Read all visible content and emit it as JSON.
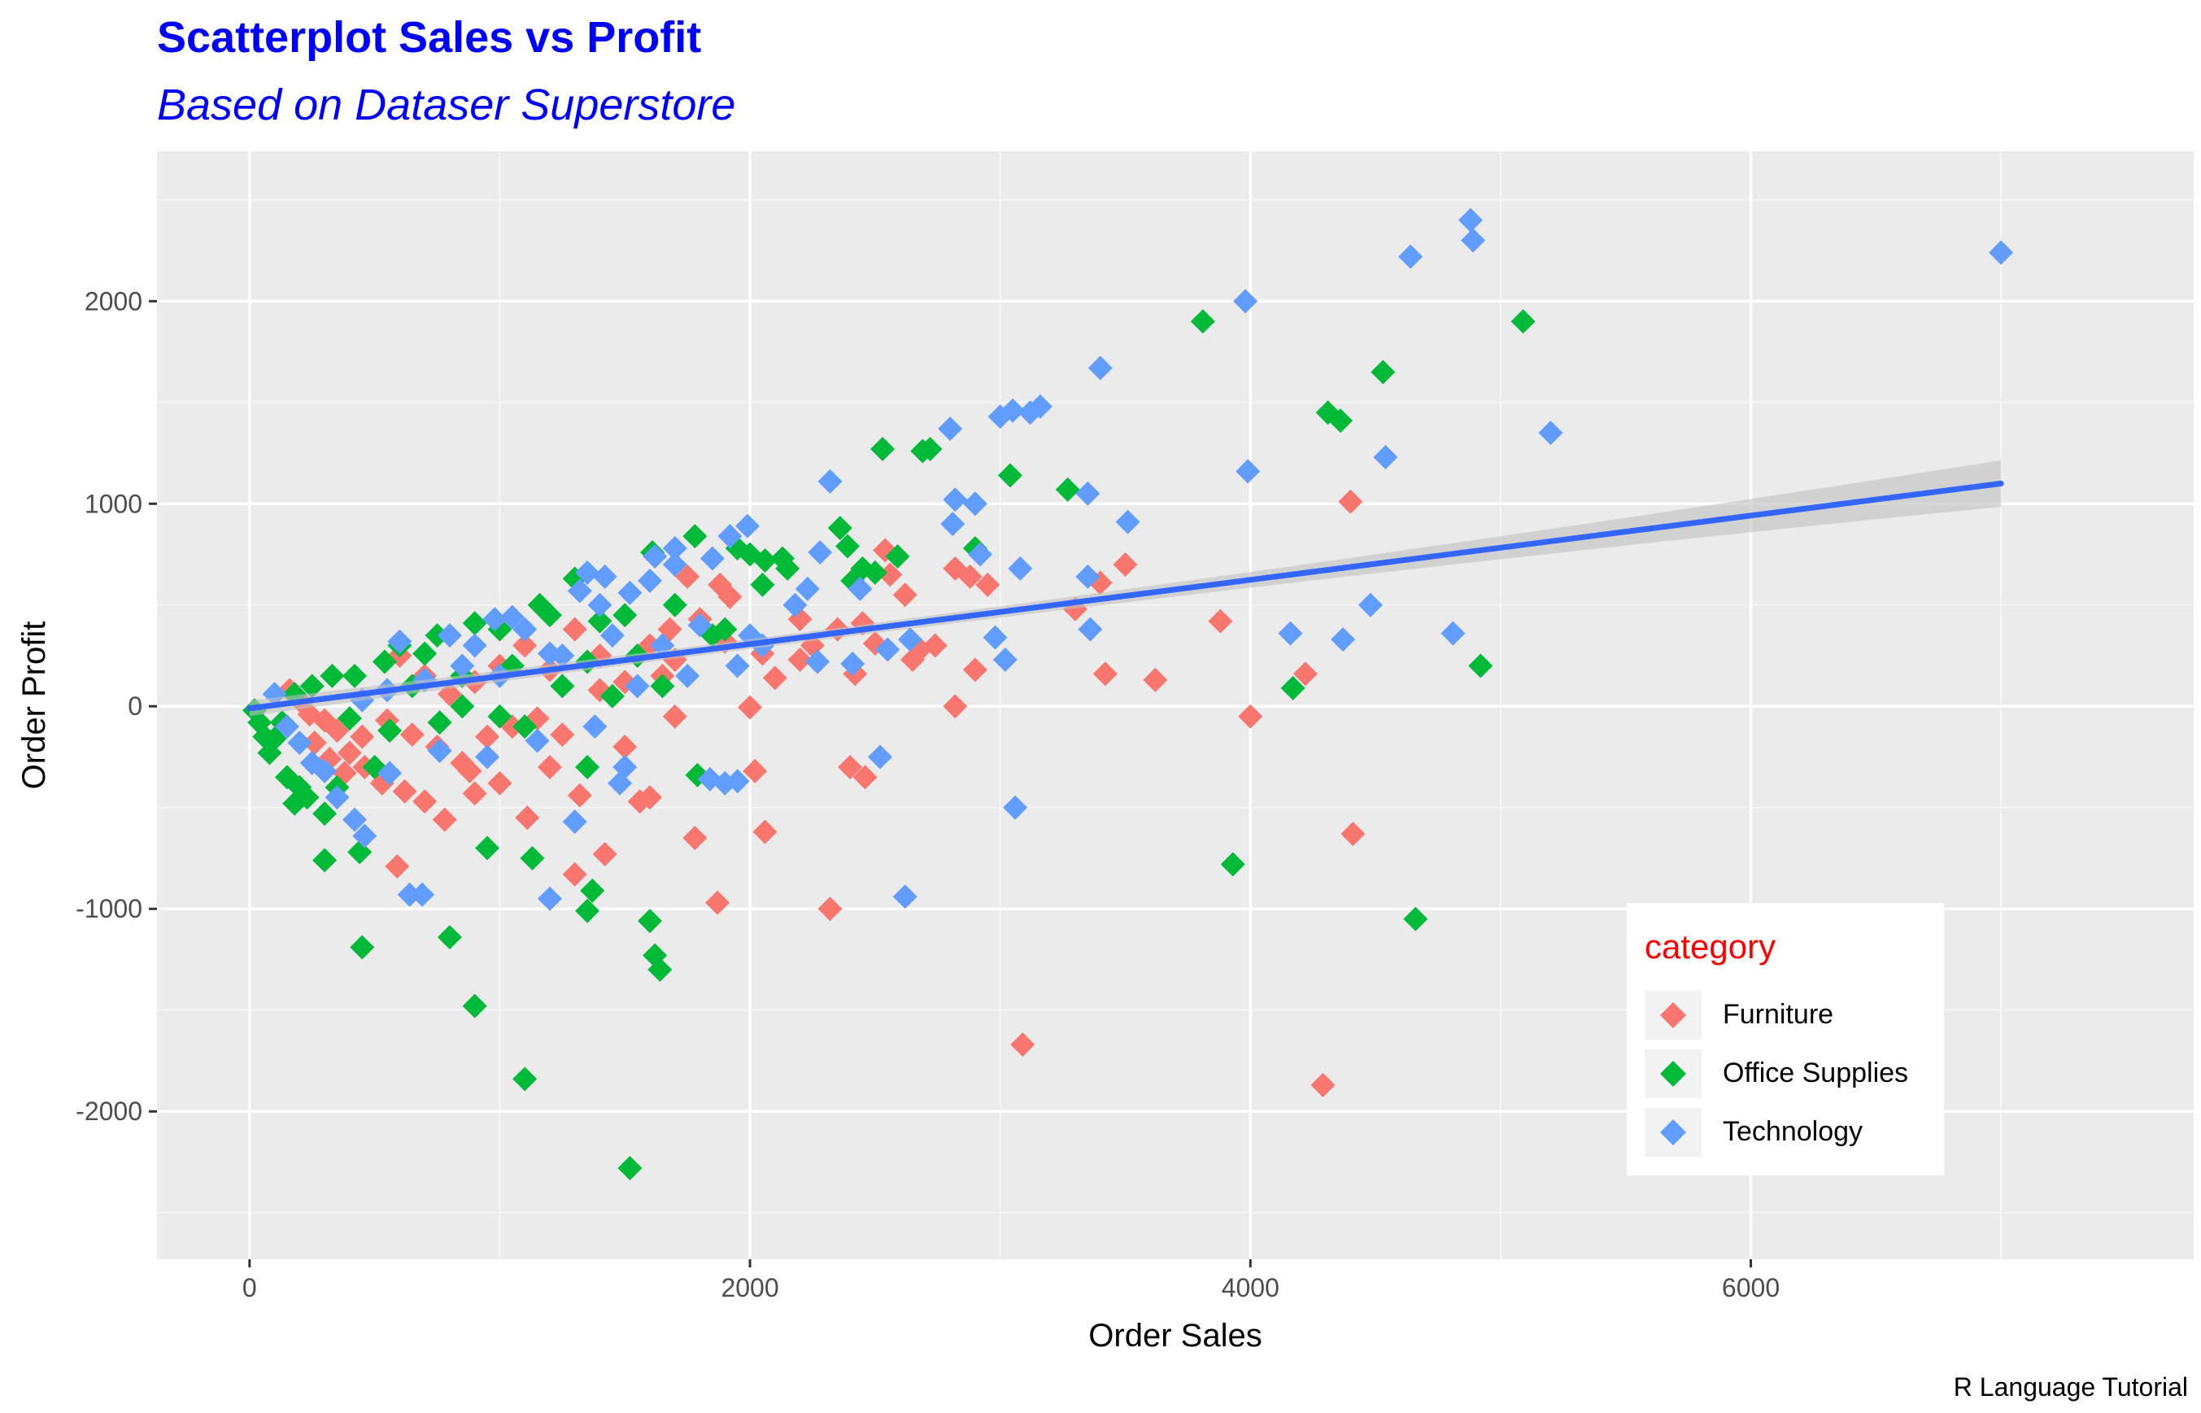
{
  "chart_data": {
    "type": "scatter",
    "title": "Scatterplot Sales vs Profit",
    "subtitle": "Based on Dataser Superstore",
    "caption": "R Language Tutorial",
    "xlabel": "Order Sales",
    "ylabel": "Order Profit",
    "xlim": [
      -370,
      7770
    ],
    "ylim": [
      -2730,
      2740
    ],
    "x_ticks": [
      0,
      2000,
      4000,
      6000
    ],
    "x_tick_labels": [
      "0",
      "2000",
      "4000",
      "6000"
    ],
    "y_ticks": [
      -2000,
      -1000,
      0,
      1000,
      2000
    ],
    "y_tick_labels": [
      "-2000",
      "-1000",
      "0",
      "1000",
      "2000"
    ],
    "grid": true,
    "legend": {
      "title": "category",
      "placement": "bottom-right inside",
      "entries": [
        "Furniture",
        "Office Supplies",
        "Technology"
      ]
    },
    "colors": {
      "title": "#0000ff",
      "legend_title": "#ff0000",
      "panel_bg": "#ebebeb",
      "grid_major": "#ffffff",
      "grid_minor": "#f5f5f5",
      "trend_line": "#3366ff",
      "ribbon": "#c0c0c0",
      "axis_text": "#4d4d4d"
    },
    "trend_line": {
      "label": "linear fit (geom_smooth, lm)",
      "x": [
        0,
        7000
      ],
      "y": [
        -10,
        1100
      ]
    },
    "series": [
      {
        "name": "Furniture",
        "color": "#f8766d",
        "points": [
          [
            4400,
            1010
          ],
          [
            3500,
            700
          ],
          [
            3400,
            610
          ],
          [
            3300,
            480
          ],
          [
            3880,
            420
          ],
          [
            3420,
            160
          ],
          [
            3620,
            130
          ],
          [
            4220,
            160
          ],
          [
            4000,
            -50
          ],
          [
            4410,
            -630
          ],
          [
            3090,
            -1670
          ],
          [
            4290,
            -1870
          ],
          [
            2820,
            680
          ],
          [
            2880,
            640
          ],
          [
            2950,
            600
          ],
          [
            2900,
            180
          ],
          [
            2820,
            0
          ],
          [
            2740,
            300
          ],
          [
            2620,
            550
          ],
          [
            2540,
            770
          ],
          [
            2500,
            310
          ],
          [
            2460,
            -350
          ],
          [
            2420,
            160
          ],
          [
            2400,
            -300
          ],
          [
            2320,
            -1000
          ],
          [
            1870,
            -970
          ],
          [
            1780,
            -650
          ],
          [
            2060,
            -620
          ],
          [
            2020,
            -320
          ],
          [
            2000,
            -5
          ],
          [
            1880,
            600
          ],
          [
            1750,
            640
          ],
          [
            1680,
            380
          ],
          [
            1600,
            -450
          ],
          [
            1560,
            -470
          ],
          [
            1420,
            -730
          ],
          [
            1300,
            -830
          ],
          [
            1320,
            -440
          ],
          [
            1200,
            -300
          ],
          [
            1110,
            -550
          ],
          [
            1000,
            -380
          ],
          [
            900,
            -430
          ],
          [
            850,
            -280
          ],
          [
            780,
            -560
          ],
          [
            700,
            -470
          ],
          [
            590,
            -790
          ],
          [
            530,
            -380
          ],
          [
            460,
            -300
          ],
          [
            400,
            -230
          ],
          [
            350,
            -120
          ],
          [
            300,
            -70
          ],
          [
            240,
            -40
          ],
          [
            200,
            30
          ],
          [
            160,
            80
          ],
          [
            600,
            250
          ],
          [
            700,
            150
          ],
          [
            800,
            60
          ],
          [
            900,
            120
          ],
          [
            1000,
            200
          ],
          [
            1100,
            300
          ],
          [
            1200,
            180
          ],
          [
            1300,
            380
          ],
          [
            1400,
            250
          ],
          [
            1500,
            120
          ],
          [
            1600,
            300
          ],
          [
            1700,
            230
          ],
          [
            1800,
            430
          ],
          [
            1900,
            320
          ],
          [
            2100,
            140
          ],
          [
            2200,
            430
          ],
          [
            2250,
            300
          ],
          [
            2350,
            380
          ],
          [
            2450,
            410
          ],
          [
            2200,
            230
          ],
          [
            2050,
            260
          ],
          [
            1700,
            -50
          ],
          [
            1500,
            -200
          ],
          [
            1250,
            -140
          ],
          [
            1150,
            -60
          ],
          [
            950,
            -150
          ],
          [
            750,
            -200
          ],
          [
            650,
            -140
          ],
          [
            550,
            -70
          ],
          [
            450,
            -150
          ],
          [
            380,
            -330
          ],
          [
            320,
            -260
          ],
          [
            260,
            -180
          ],
          [
            620,
            -420
          ],
          [
            880,
            -320
          ],
          [
            1050,
            -100
          ],
          [
            1400,
            80
          ],
          [
            1650,
            150
          ],
          [
            1920,
            540
          ],
          [
            2650,
            230
          ],
          [
            2680,
            280
          ],
          [
            2560,
            650
          ]
        ]
      },
      {
        "name": "Office Supplies",
        "color": "#00ba38",
        "points": [
          [
            5090,
            1900
          ],
          [
            3810,
            1900
          ],
          [
            4310,
            1450
          ],
          [
            4360,
            1410
          ],
          [
            4530,
            1650
          ],
          [
            4920,
            200
          ],
          [
            4170,
            90
          ],
          [
            3930,
            -780
          ],
          [
            4660,
            -1050
          ],
          [
            3270,
            1070
          ],
          [
            3040,
            1140
          ],
          [
            2690,
            1260
          ],
          [
            2720,
            1270
          ],
          [
            2530,
            1270
          ],
          [
            2390,
            790
          ],
          [
            2410,
            620
          ],
          [
            2360,
            880
          ],
          [
            2590,
            740
          ],
          [
            2500,
            660
          ],
          [
            2060,
            720
          ],
          [
            2130,
            730
          ],
          [
            2000,
            750
          ],
          [
            1780,
            840
          ],
          [
            1610,
            760
          ],
          [
            1300,
            630
          ],
          [
            1160,
            500
          ],
          [
            1520,
            -2280
          ],
          [
            1100,
            -1840
          ],
          [
            900,
            -1480
          ],
          [
            800,
            -1140
          ],
          [
            450,
            -1190
          ],
          [
            1620,
            -1230
          ],
          [
            1640,
            -1300
          ],
          [
            1600,
            -1060
          ],
          [
            1370,
            -910
          ],
          [
            1350,
            -1010
          ],
          [
            950,
            -700
          ],
          [
            1130,
            -750
          ],
          [
            440,
            -720
          ],
          [
            300,
            -760
          ],
          [
            230,
            -450
          ],
          [
            300,
            -530
          ],
          [
            1790,
            -340
          ],
          [
            1350,
            -300
          ],
          [
            1100,
            -100
          ],
          [
            850,
            0
          ],
          [
            700,
            260
          ],
          [
            540,
            220
          ],
          [
            420,
            150
          ],
          [
            330,
            150
          ],
          [
            250,
            100
          ],
          [
            180,
            60
          ],
          [
            130,
            -80
          ],
          [
            100,
            -160
          ],
          [
            80,
            -230
          ],
          [
            60,
            -150
          ],
          [
            40,
            -80
          ],
          [
            20,
            -20
          ],
          [
            600,
            300
          ],
          [
            750,
            350
          ],
          [
            900,
            410
          ],
          [
            1000,
            380
          ],
          [
            1200,
            450
          ],
          [
            1400,
            420
          ],
          [
            1500,
            450
          ],
          [
            1700,
            500
          ],
          [
            1850,
            350
          ],
          [
            1950,
            780
          ],
          [
            2050,
            600
          ],
          [
            1650,
            100
          ],
          [
            1450,
            50
          ],
          [
            1250,
            100
          ],
          [
            1050,
            200
          ],
          [
            850,
            150
          ],
          [
            650,
            100
          ],
          [
            500,
            -300
          ],
          [
            350,
            -400
          ],
          [
            200,
            -400
          ],
          [
            150,
            -350
          ],
          [
            180,
            -480
          ],
          [
            1900,
            380
          ],
          [
            2150,
            680
          ],
          [
            2450,
            680
          ],
          [
            2900,
            780
          ],
          [
            1550,
            250
          ],
          [
            1350,
            220
          ],
          [
            1000,
            -50
          ],
          [
            760,
            -80
          ],
          [
            560,
            -120
          ],
          [
            400,
            -60
          ]
        ]
      },
      {
        "name": "Technology",
        "color": "#619cff",
        "points": [
          [
            4880,
            2400
          ],
          [
            4890,
            2300
          ],
          [
            4640,
            2220
          ],
          [
            7000,
            2240
          ],
          [
            3980,
            2000
          ],
          [
            5200,
            1350
          ],
          [
            3990,
            1160
          ],
          [
            4540,
            1230
          ],
          [
            3400,
            1670
          ],
          [
            3160,
            1480
          ],
          [
            3120,
            1450
          ],
          [
            3050,
            1460
          ],
          [
            3000,
            1430
          ],
          [
            2800,
            1370
          ],
          [
            3350,
            1050
          ],
          [
            3510,
            910
          ],
          [
            2900,
            1000
          ],
          [
            2820,
            1020
          ],
          [
            2810,
            900
          ],
          [
            2920,
            750
          ],
          [
            3080,
            680
          ],
          [
            3350,
            640
          ],
          [
            3360,
            380
          ],
          [
            4160,
            360
          ],
          [
            4370,
            330
          ],
          [
            4480,
            500
          ],
          [
            4810,
            360
          ],
          [
            3060,
            -500
          ],
          [
            2620,
            -940
          ],
          [
            2520,
            -250
          ],
          [
            2640,
            330
          ],
          [
            2320,
            1110
          ],
          [
            2280,
            760
          ],
          [
            2180,
            500
          ],
          [
            2230,
            580
          ],
          [
            2270,
            220
          ],
          [
            2410,
            210
          ],
          [
            2440,
            580
          ],
          [
            2550,
            280
          ],
          [
            2980,
            340
          ],
          [
            3020,
            230
          ],
          [
            1990,
            890
          ],
          [
            1920,
            840
          ],
          [
            1850,
            730
          ],
          [
            1700,
            780
          ],
          [
            1620,
            740
          ],
          [
            1520,
            560
          ],
          [
            1420,
            640
          ],
          [
            1350,
            660
          ],
          [
            1320,
            570
          ],
          [
            1050,
            440
          ],
          [
            980,
            430
          ],
          [
            1900,
            -380
          ],
          [
            1950,
            -370
          ],
          [
            1840,
            -360
          ],
          [
            1500,
            -300
          ],
          [
            1480,
            -380
          ],
          [
            1300,
            -570
          ],
          [
            1200,
            -950
          ],
          [
            690,
            -930
          ],
          [
            640,
            -930
          ],
          [
            460,
            -640
          ],
          [
            420,
            -560
          ],
          [
            350,
            -450
          ],
          [
            300,
            -320
          ],
          [
            250,
            -280
          ],
          [
            200,
            -180
          ],
          [
            150,
            -100
          ],
          [
            100,
            60
          ],
          [
            600,
            320
          ],
          [
            800,
            350
          ],
          [
            900,
            300
          ],
          [
            1100,
            380
          ],
          [
            1200,
            260
          ],
          [
            1400,
            500
          ],
          [
            1600,
            620
          ],
          [
            1700,
            700
          ],
          [
            1800,
            400
          ],
          [
            2000,
            350
          ],
          [
            1950,
            200
          ],
          [
            1650,
            300
          ],
          [
            1450,
            350
          ],
          [
            1250,
            250
          ],
          [
            1000,
            150
          ],
          [
            850,
            200
          ],
          [
            700,
            130
          ],
          [
            550,
            80
          ],
          [
            450,
            30
          ],
          [
            1150,
            -170
          ],
          [
            950,
            -250
          ],
          [
            760,
            -220
          ],
          [
            560,
            -330
          ],
          [
            1750,
            150
          ],
          [
            2050,
            300
          ],
          [
            1380,
            -100
          ],
          [
            1550,
            100
          ]
        ]
      }
    ]
  }
}
